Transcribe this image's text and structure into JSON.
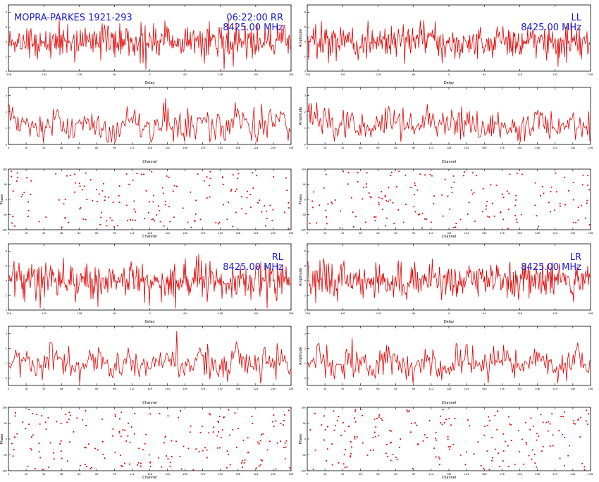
{
  "header": {
    "baseline": "MOPRA-PARKES 1921-293",
    "time_pol": "06:22:00  RR",
    "freq": "8425.00 MHz"
  },
  "colors": {
    "trace": "#e00000",
    "annotation": "#1a1ad6",
    "axis": "#000000"
  },
  "labels": {
    "delay": "Delay",
    "channel": "Channel",
    "phase": "Phase",
    "amplitude": "Amplitude"
  },
  "panels": [
    {
      "id": "rr",
      "pol": "RR",
      "freq": "8425.00 MHz",
      "delay": {
        "type": "line",
        "xlim": [
          -256,
          256
        ],
        "ylim": [
          0,
          9
        ],
        "yticks": [
          0,
          2,
          4,
          6,
          8
        ],
        "xticks": [
          -256,
          -192,
          -128,
          -64,
          0,
          64,
          128,
          192,
          256
        ],
        "mean": 4.0,
        "spread": 1.2,
        "points": 400
      },
      "amp": {
        "type": "line",
        "xlim": [
          0,
          256
        ],
        "ylim": [
          0,
          3.5
        ],
        "yticks": [
          0,
          1,
          2,
          3
        ],
        "mean": 1.2,
        "spread": 0.55,
        "points": 256
      },
      "phase": {
        "type": "scatter",
        "xlim": [
          0,
          256
        ],
        "ylim": [
          -180,
          180
        ],
        "yticks": [
          -180,
          -90,
          0,
          90,
          180
        ],
        "points": 170
      }
    },
    {
      "id": "ll",
      "pol": "LL",
      "freq": "8425.00 MHz",
      "delay": {
        "type": "line",
        "xlim": [
          -256,
          256
        ],
        "ylim": [
          0,
          9
        ],
        "yticks": [
          0,
          2,
          4,
          6,
          8
        ],
        "xticks": [
          -256,
          -192,
          -128,
          -64,
          0,
          64,
          128,
          192,
          256
        ],
        "mean": 4.0,
        "spread": 1.2,
        "points": 400
      },
      "amp": {
        "type": "line",
        "xlim": [
          0,
          256
        ],
        "ylim": [
          0,
          3.5
        ],
        "yticks": [
          0,
          1,
          2,
          3
        ],
        "mean": 1.2,
        "spread": 0.55,
        "points": 256
      },
      "phase": {
        "type": "scatter",
        "xlim": [
          0,
          256
        ],
        "ylim": [
          -180,
          180
        ],
        "yticks": [
          -180,
          -90,
          0,
          90,
          180
        ],
        "points": 170
      }
    },
    {
      "id": "rl",
      "pol": "RL",
      "freq": "8425.00 MHz",
      "delay": {
        "type": "line",
        "xlim": [
          -256,
          256
        ],
        "ylim": [
          0,
          9
        ],
        "yticks": [
          0,
          2,
          4,
          6,
          8
        ],
        "xticks": [
          -256,
          -192,
          -128,
          -64,
          0,
          64,
          128,
          192,
          256
        ],
        "mean": 4.0,
        "spread": 1.3,
        "points": 400
      },
      "amp": {
        "type": "line",
        "xlim": [
          0,
          256
        ],
        "ylim": [
          -0.5,
          3.5
        ],
        "yticks": [
          0,
          1,
          2,
          3
        ],
        "mean": 1.0,
        "spread": 0.55,
        "points": 256
      },
      "phase": {
        "type": "scatter",
        "xlim": [
          0,
          256
        ],
        "ylim": [
          -180,
          180
        ],
        "yticks": [
          -180,
          -90,
          0,
          90,
          180
        ],
        "points": 200
      }
    },
    {
      "id": "lr",
      "pol": "LR",
      "freq": "8425.00 MHz",
      "delay": {
        "type": "line",
        "xlim": [
          -256,
          256
        ],
        "ylim": [
          0,
          9
        ],
        "yticks": [
          0,
          2,
          4,
          6,
          8
        ],
        "xticks": [
          -256,
          -192,
          -128,
          -64,
          0,
          64,
          128,
          192,
          256
        ],
        "mean": 4.0,
        "spread": 1.3,
        "points": 400
      },
      "amp": {
        "type": "line",
        "xlim": [
          0,
          256
        ],
        "ylim": [
          -0.5,
          3.5
        ],
        "yticks": [
          0,
          1,
          2,
          3
        ],
        "mean": 1.0,
        "spread": 0.55,
        "points": 256
      },
      "phase": {
        "type": "scatter",
        "xlim": [
          0,
          256
        ],
        "ylim": [
          -180,
          180
        ],
        "yticks": [
          -180,
          -90,
          0,
          90,
          180
        ],
        "points": 200
      }
    }
  ]
}
